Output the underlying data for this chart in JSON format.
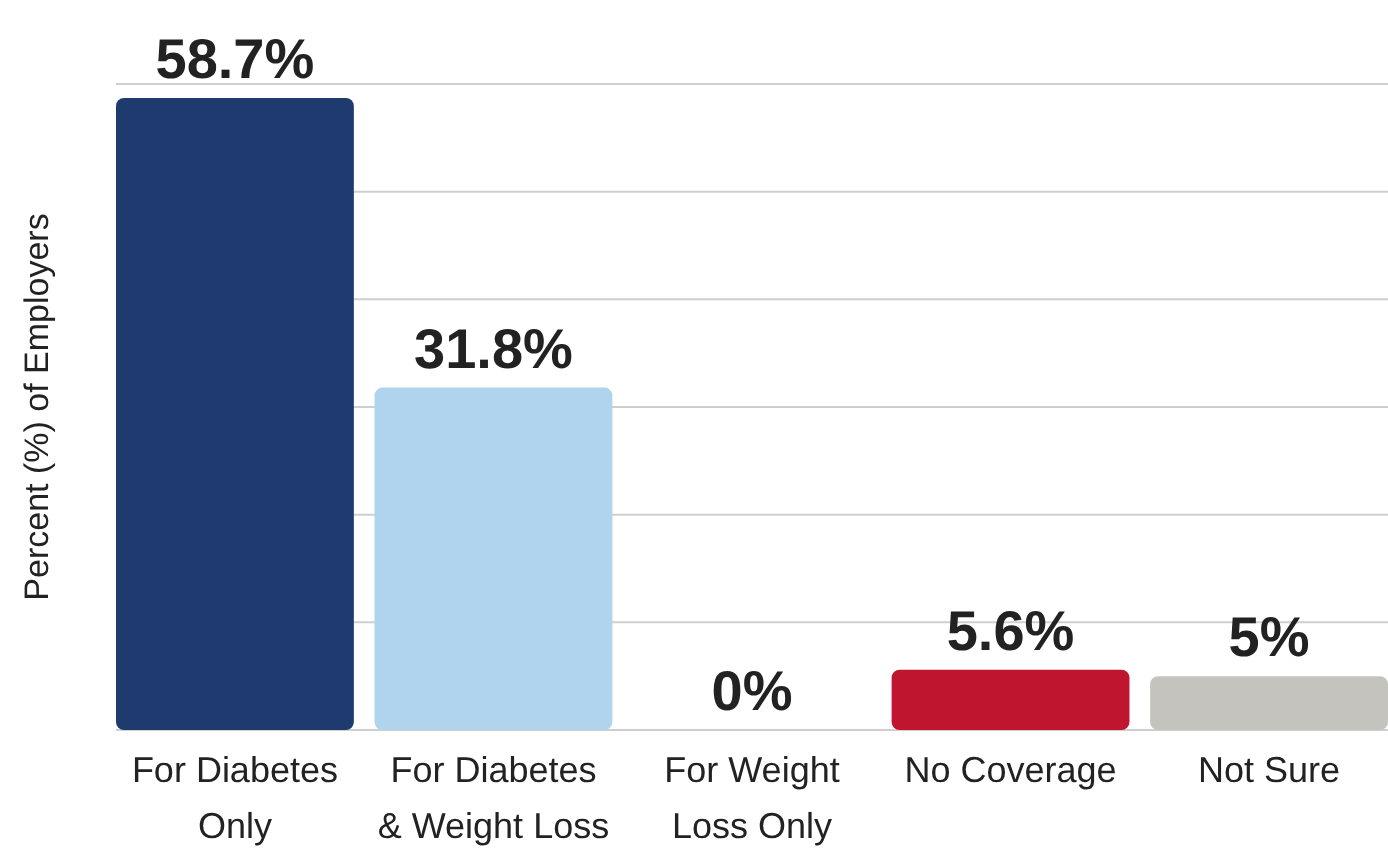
{
  "chart_data": {
    "type": "bar",
    "ylabel": "Percent (%) of Employers",
    "categories": [
      "For Diabetes Only",
      "For Diabetes & Weight Loss",
      "For Weight Loss Only",
      "No Coverage",
      "Not Sure"
    ],
    "values": [
      58.7,
      31.8,
      0,
      5.6,
      5
    ],
    "colors": [
      "#1f3a6e",
      "#b0d3ee",
      "#d9d9d9",
      "#c0152f",
      "#c4c3bd"
    ],
    "value_labels": [
      "58.7%",
      "31.8%",
      "0%",
      "5.6%",
      "5%"
    ],
    "ylim": [
      0,
      60
    ],
    "yticks": [
      {
        "value": 0,
        "label": null
      },
      {
        "value": 10,
        "label": null
      },
      {
        "value": 20,
        "label": null
      },
      {
        "value": 30,
        "label": null
      },
      {
        "value": 40,
        "label": null
      },
      {
        "value": 50,
        "label": null
      },
      {
        "value": 60,
        "label": null
      }
    ],
    "grid": "y"
  }
}
